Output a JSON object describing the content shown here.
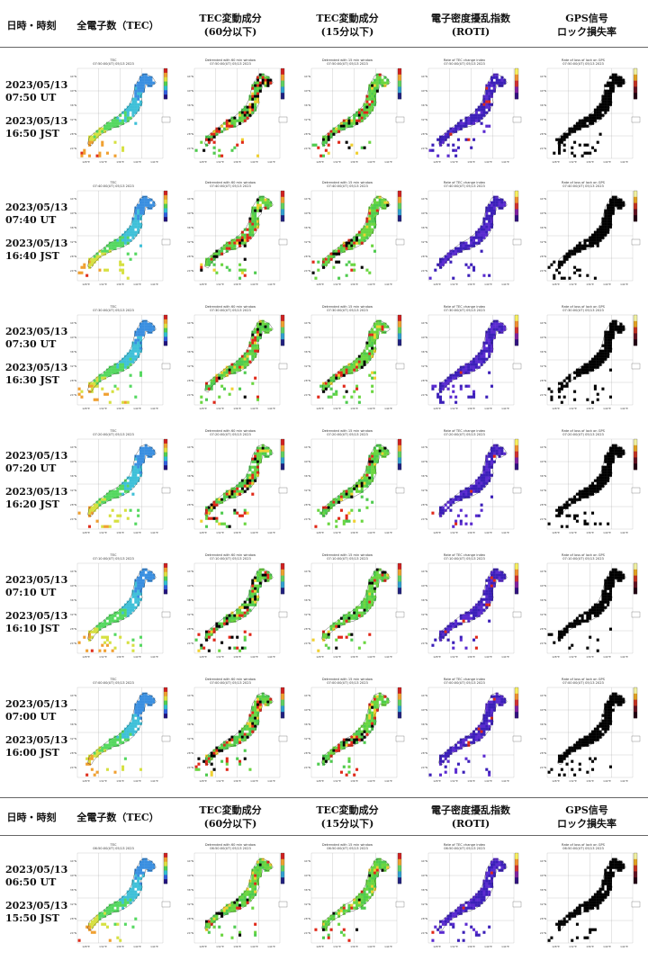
{
  "headers": [
    {
      "date": "日時・時刻",
      "c0": "全電子数（TEC）",
      "c1a": "TEC変動成分",
      "c1b": "(60分以下)",
      "c2a": "TEC変動成分",
      "c2b": "(15分以下)",
      "c3a": "電子密度擾乱指数",
      "c3b": "(ROTI)",
      "c4a": "GPS信号",
      "c4b": "ロック損失率"
    },
    {
      "date": "日時・時刻",
      "c0": "全電子数（TEC）",
      "c1a": "TEC変動成分",
      "c1b": "(60分以下)",
      "c2a": "TEC変動成分",
      "c2b": "(15分以下)",
      "c3a": "電子密度擾乱指数",
      "c3b": "(ROTI)",
      "c4a": "GPS信号",
      "c4b": "ロック損失率"
    }
  ],
  "map_panels": {
    "tec": {
      "title": "TEC"
    },
    "dtec60": {
      "title": "Detrended with 60 min window"
    },
    "dtec15": {
      "title": "Detrended with 15 min window"
    },
    "roti": {
      "title": "Rate of TEC change index"
    },
    "lol": {
      "title": "Rate of loss of lock on GPS"
    }
  },
  "lat_ticks": [
    "44°N",
    "40°N",
    "36°N",
    "32°N",
    "28°N",
    "24°N"
  ],
  "lon_ticks": [
    "128°E",
    "132°E",
    "136°E",
    "140°E",
    "144°E"
  ],
  "rows": [
    {
      "date_ut": "2023/05/13",
      "time_ut": "07:50 UT",
      "date_jst": "2023/05/13",
      "time_jst": "16:50 JST",
      "map_time": "07:50:00(UT) 05/13 2023"
    },
    {
      "date_ut": "2023/05/13",
      "time_ut": "07:40 UT",
      "date_jst": "2023/05/13",
      "time_jst": "16:40 JST",
      "map_time": "07:40:00(UT) 05/13 2023"
    },
    {
      "date_ut": "2023/05/13",
      "time_ut": "07:30 UT",
      "date_jst": "2023/05/13",
      "time_jst": "16:30 JST",
      "map_time": "07:30:00(UT) 05/13 2023"
    },
    {
      "date_ut": "2023/05/13",
      "time_ut": "07:20 UT",
      "date_jst": "2023/05/13",
      "time_jst": "16:20 JST",
      "map_time": "07:20:00(UT) 05/13 2023"
    },
    {
      "date_ut": "2023/05/13",
      "time_ut": "07:10 UT",
      "date_jst": "2023/05/13",
      "time_jst": "16:10 JST",
      "map_time": "07:10:00(UT) 05/13 2023"
    },
    {
      "date_ut": "2023/05/13",
      "time_ut": "07:00 UT",
      "date_jst": "2023/05/13",
      "time_jst": "16:00 JST",
      "map_time": "07:00:00(UT) 05/13 2023"
    },
    {
      "date_ut": "2023/05/13",
      "time_ut": "06:50 UT",
      "date_jst": "2023/05/13",
      "time_jst": "15:50 JST",
      "map_time": "06:50:00(UT) 05/13 2023"
    }
  ],
  "colors": {
    "tec_hi": "#e0301e",
    "tec_mid": "#55d860",
    "tec_lo": "#3a8fe0",
    "roti": "#3b1fb8",
    "roti_bg": "#5a2ad0",
    "lol": "#000000",
    "grid": "#9a9a9a"
  }
}
